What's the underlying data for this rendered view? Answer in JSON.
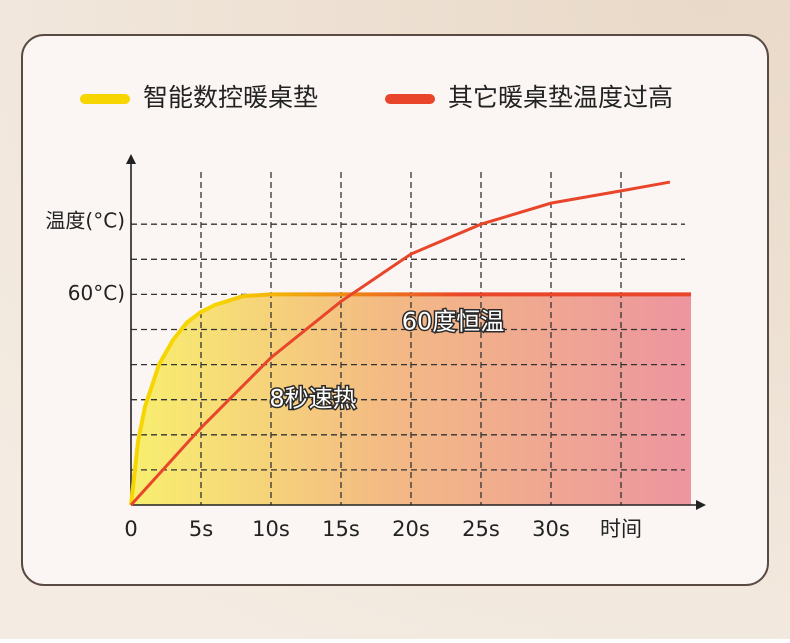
{
  "chart_data": {
    "type": "line",
    "legend": "top",
    "y_label": "温度(°C)",
    "x_label": "时间",
    "xlim": [
      0,
      40
    ],
    "ylim": [
      0,
      100
    ],
    "xticks": [
      0,
      {
        "value": 5,
        "label": "5s"
      },
      {
        "value": 10,
        "label": "10s"
      },
      {
        "value": 15,
        "label": "15s"
      },
      {
        "value": 20,
        "label": "20s"
      },
      {
        "value": 25,
        "label": "25s"
      },
      {
        "value": 30,
        "label": "30s"
      }
    ],
    "yticks": [
      {
        "value": 60,
        "label": "60°C)"
      }
    ],
    "xgrid": [
      5,
      10,
      15,
      20,
      25,
      30,
      35
    ],
    "ygrid": [
      10,
      20,
      30,
      40,
      50,
      60,
      70,
      80
    ],
    "series": [
      {
        "name": "智能数控暖桌垫",
        "color": "#f7d500",
        "x": [
          0,
          0.5,
          1,
          2,
          3,
          4,
          5,
          6,
          8,
          10,
          20,
          30,
          40
        ],
        "values": [
          0,
          18,
          28,
          40,
          47,
          52,
          55,
          57,
          59.5,
          60,
          60,
          60,
          60
        ]
      },
      {
        "name": "其它暖桌垫温度过高",
        "color": "#e8452a",
        "x": [
          0,
          5,
          10,
          15,
          20,
          25,
          30,
          35,
          38.5
        ],
        "values": [
          0,
          22,
          42,
          58,
          71.5,
          80,
          86,
          89.5,
          92
        ]
      }
    ],
    "annotations": [
      {
        "text": "60度恒温",
        "x": 23,
        "y": 52
      },
      {
        "text": "8秒速热",
        "x": 13,
        "y": 30
      }
    ]
  }
}
